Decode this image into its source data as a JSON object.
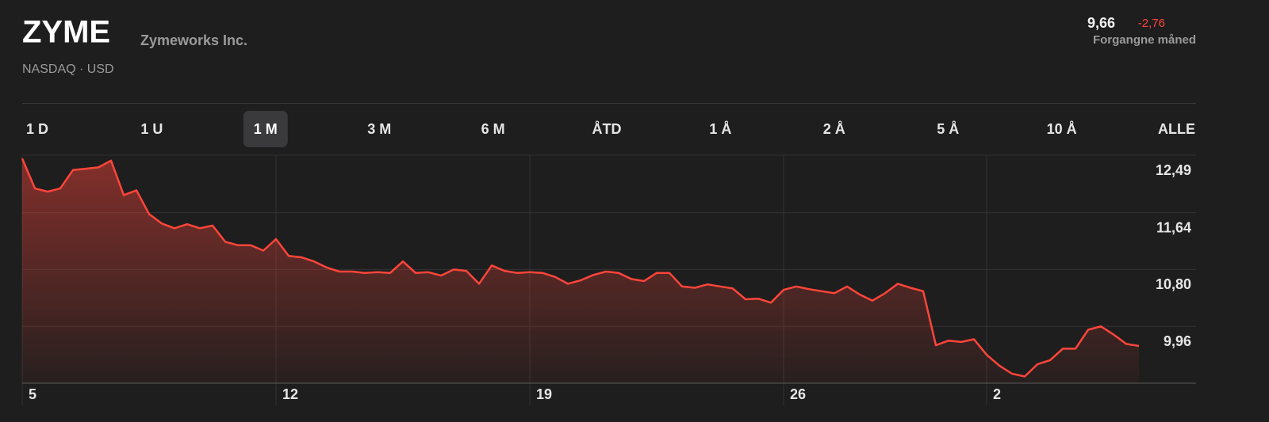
{
  "header": {
    "ticker": "ZYME",
    "company": "Zymeworks Inc.",
    "exchange": "NASDAQ · USD",
    "price": "9,66",
    "change": "-2,76",
    "period": "Forgangne måned"
  },
  "tabs": {
    "items": [
      "1 D",
      "1 U",
      "1 M",
      "3 M",
      "6 M",
      "ÅTD",
      "1 Å",
      "2 Å",
      "5 Å",
      "10 Å",
      "ALLE"
    ],
    "selected": 2
  },
  "chart_data": {
    "type": "area",
    "color": "#ff453a",
    "x": [
      0,
      1,
      2,
      3,
      4,
      5,
      6,
      7,
      8,
      9,
      10,
      11,
      12,
      13,
      14,
      15,
      16,
      17,
      18,
      19,
      20,
      21,
      22,
      23,
      24,
      25,
      26,
      27,
      28,
      29,
      30,
      31,
      32,
      33,
      34,
      35,
      36,
      37,
      38,
      39,
      40,
      41,
      42,
      43,
      44,
      45,
      46,
      47,
      48,
      49,
      50,
      51,
      52,
      53,
      54,
      55,
      56,
      57,
      58,
      59,
      60,
      61,
      62,
      63,
      64,
      65,
      66,
      67,
      68,
      69,
      70,
      71,
      72,
      73,
      74,
      75,
      76,
      77,
      78,
      79,
      80,
      81,
      82,
      83,
      84,
      85,
      86,
      87,
      88
    ],
    "values": [
      12.44,
      12.0,
      11.95,
      12.0,
      12.27,
      12.29,
      12.31,
      12.41,
      11.9,
      11.97,
      11.62,
      11.48,
      11.41,
      11.47,
      11.41,
      11.45,
      11.21,
      11.16,
      11.16,
      11.08,
      11.25,
      11.0,
      10.98,
      10.92,
      10.83,
      10.77,
      10.77,
      10.75,
      10.76,
      10.75,
      10.92,
      10.75,
      10.76,
      10.71,
      10.8,
      10.78,
      10.59,
      10.86,
      10.78,
      10.75,
      10.76,
      10.75,
      10.69,
      10.59,
      10.64,
      10.72,
      10.77,
      10.75,
      10.66,
      10.63,
      10.75,
      10.75,
      10.55,
      10.53,
      10.58,
      10.55,
      10.52,
      10.36,
      10.37,
      10.31,
      10.5,
      10.55,
      10.51,
      10.48,
      10.45,
      10.55,
      10.43,
      10.34,
      10.45,
      10.59,
      10.53,
      10.48,
      9.68,
      9.75,
      9.73,
      9.77,
      9.54,
      9.38,
      9.26,
      9.22,
      9.4,
      9.46,
      9.63,
      9.63,
      9.91,
      9.96,
      9.84,
      9.7,
      9.67
    ],
    "xlim": [
      0,
      92.5
    ],
    "xticks": [
      {
        "value": 0,
        "label": "5"
      },
      {
        "value": 20,
        "label": "12"
      },
      {
        "value": 40,
        "label": "19"
      },
      {
        "value": 60,
        "label": "26"
      },
      {
        "value": 76,
        "label": "2"
      }
    ],
    "ylim": [
      9.12,
      12.49
    ],
    "yticks": [
      {
        "value": 12.49,
        "label": "12,49"
      },
      {
        "value": 11.64,
        "label": "11,64"
      },
      {
        "value": 10.8,
        "label": "10,80"
      },
      {
        "value": 9.96,
        "label": "9,96"
      }
    ],
    "grid": true
  }
}
